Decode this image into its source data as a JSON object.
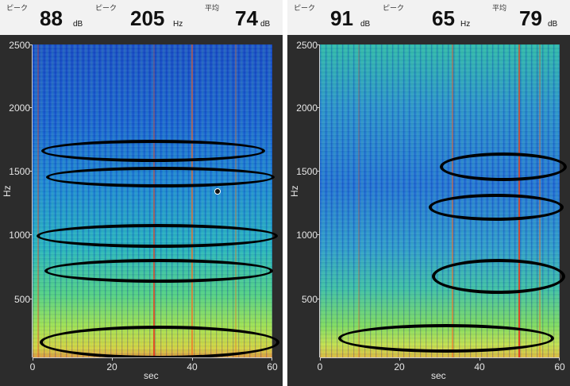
{
  "panels": [
    {
      "id": "left",
      "header": {
        "peak_db_tag": "ピーク",
        "peak_db_value": "88",
        "peak_db_unit": "dB",
        "peak_hz_tag": "ピーク",
        "peak_hz_value": "205",
        "peak_hz_unit": "Hz",
        "avg_tag": "平均",
        "avg_value": "74",
        "avg_unit": "dB"
      },
      "chart_data": {
        "type": "heatmap",
        "xlabel": "sec",
        "ylabel": "Hz",
        "xlim": [
          0,
          60
        ],
        "ylim": [
          0,
          2500
        ],
        "x_ticks": [
          "0",
          "20",
          "40",
          "60"
        ],
        "y_ticks": [
          "2500",
          "2000",
          "1500",
          "1000",
          "500"
        ],
        "colormap": [
          "#1b4fc8",
          "#27b3c3",
          "#55d184",
          "#e0d43c",
          "#e23a1e"
        ],
        "highlight_bands_hz": [
          [
            1600,
            1720
          ],
          [
            1390,
            1520
          ],
          [
            930,
            1070
          ],
          [
            600,
            740
          ],
          [
            120,
            330
          ]
        ]
      }
    },
    {
      "id": "right",
      "header": {
        "peak_db_tag": "ピーク",
        "peak_db_value": "91",
        "peak_db_unit": "dB",
        "peak_hz_tag": "ピーク",
        "peak_hz_value": "65",
        "peak_hz_unit": "Hz",
        "avg_tag": "平均",
        "avg_value": "79",
        "avg_unit": "dB"
      },
      "chart_data": {
        "type": "heatmap",
        "xlabel": "sec",
        "ylabel": "Hz",
        "xlim": [
          0,
          60
        ],
        "ylim": [
          0,
          2500
        ],
        "x_ticks": [
          "0",
          "20",
          "40",
          "60"
        ],
        "y_ticks": [
          "2500",
          "2000",
          "1500",
          "1000",
          "500"
        ],
        "colormap": [
          "#2371d8",
          "#2fb8ad",
          "#86dc5c",
          "#cfe24a",
          "#e23a1e"
        ],
        "highlight_bands_hz": [
          [
            1460,
            1680
          ],
          [
            1100,
            1310
          ],
          [
            560,
            850
          ],
          [
            60,
            280
          ]
        ]
      }
    }
  ]
}
